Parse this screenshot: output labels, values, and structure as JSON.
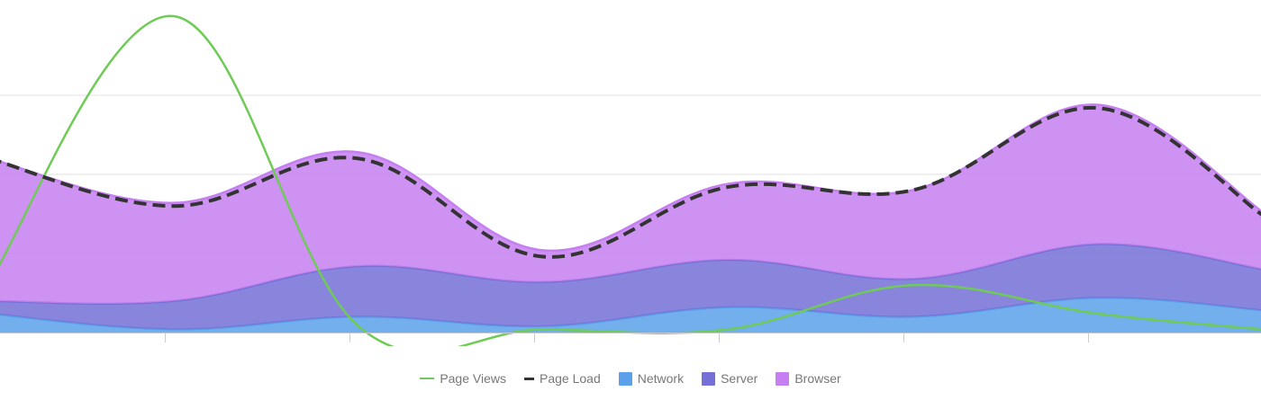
{
  "chart_data": {
    "type": "area",
    "x": [
      0,
      1,
      2,
      3,
      4,
      5,
      6
    ],
    "ylim": [
      0,
      100
    ],
    "grid": true,
    "legend_position": "bottom-center",
    "series": [
      {
        "name": "Page Views",
        "kind": "line",
        "color": "#6ecb55",
        "values": [
          16,
          100,
          2,
          1,
          1,
          15,
          6,
          1
        ],
        "x": [
          0,
          1,
          2,
          3,
          4,
          5,
          6,
          6.9
        ]
      },
      {
        "name": "Page Load",
        "kind": "dashed-line",
        "color": "#333333",
        "values": [
          55,
          40,
          55,
          24,
          46,
          45,
          71,
          37
        ],
        "x": [
          0,
          1,
          2,
          3,
          4,
          5,
          6,
          6.9
        ]
      },
      {
        "name": "Network",
        "kind": "stacked-area",
        "color": "#5aa0ea",
        "values": [
          6,
          1,
          5,
          2,
          8,
          5,
          11,
          7
        ],
        "x": [
          0,
          1,
          2,
          3,
          4,
          5,
          6,
          6.9
        ]
      },
      {
        "name": "Server",
        "kind": "stacked-area",
        "color": "#7570d6",
        "values": [
          4,
          9,
          16,
          14,
          15,
          12,
          17,
          13
        ],
        "x": [
          0,
          1,
          2,
          3,
          4,
          5,
          6,
          6.9
        ]
      },
      {
        "name": "Browser",
        "kind": "stacked-area",
        "color": "#c57ff0",
        "values": [
          45,
          31,
          36,
          10,
          24,
          28,
          44,
          18
        ],
        "x": [
          0,
          1,
          2,
          3,
          4,
          5,
          6,
          6.9
        ]
      }
    ]
  },
  "legend": {
    "page_views": "Page Views",
    "page_load": "Page Load",
    "network": "Network",
    "server": "Server",
    "browser": "Browser"
  }
}
